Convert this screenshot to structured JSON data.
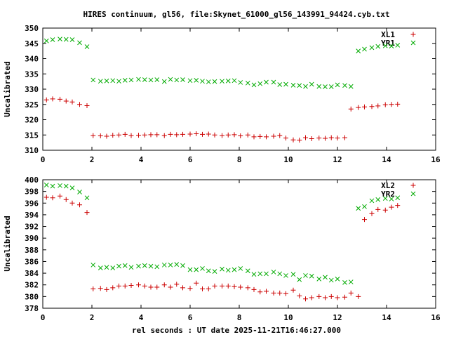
{
  "title": "HIRES continuum, gl56, file:Skynet_61000_gl56_143991_94424.cyb.txt",
  "xlabel": "rel seconds : UT date 2025-11-21T16:46:27.000",
  "colors": {
    "series_a": "#cc0000",
    "series_b": "#00aa00",
    "axis": "#000000"
  },
  "chart_data": [
    {
      "type": "scatter",
      "ylabel": "Uncalibrated",
      "xlim": [
        0,
        16
      ],
      "ylim": [
        310,
        350
      ],
      "xticks": [
        "0",
        "2",
        "4",
        "6",
        "8",
        "10",
        "12",
        "14",
        "16"
      ],
      "yticks": [
        "310",
        "315",
        "320",
        "325",
        "330",
        "335",
        "340",
        "345",
        "350"
      ],
      "legend_position": "top-right",
      "series": [
        {
          "name": "XL1",
          "marker": "plus",
          "x": [
            0.15,
            0.4,
            0.7,
            0.95,
            1.2,
            1.5,
            1.8,
            2.05,
            2.35,
            2.6,
            2.85,
            3.1,
            3.35,
            3.6,
            3.9,
            4.15,
            4.4,
            4.65,
            4.95,
            5.2,
            5.45,
            5.7,
            6.0,
            6.25,
            6.5,
            6.75,
            7.0,
            7.3,
            7.55,
            7.8,
            8.05,
            8.35,
            8.6,
            8.85,
            9.1,
            9.4,
            9.65,
            9.9,
            10.2,
            10.45,
            10.7,
            10.95,
            11.25,
            11.5,
            11.75,
            12.0,
            12.3,
            12.55,
            12.85,
            13.1,
            13.4,
            13.65,
            13.95,
            14.2,
            14.45
          ],
          "y": [
            326.5,
            326.8,
            326.7,
            326.1,
            325.8,
            325.0,
            324.6,
            314.8,
            314.7,
            314.6,
            314.9,
            315.0,
            315.2,
            314.8,
            314.9,
            315.0,
            315.1,
            315.1,
            314.8,
            315.2,
            315.1,
            315.2,
            315.3,
            315.4,
            315.2,
            315.3,
            315.0,
            314.8,
            315.0,
            315.1,
            314.7,
            315.0,
            314.4,
            314.5,
            314.4,
            314.6,
            314.8,
            314.0,
            313.4,
            313.3,
            314.1,
            313.8,
            314.0,
            313.9,
            314.1,
            314.0,
            314.1,
            323.5,
            324.0,
            324.2,
            324.3,
            324.5,
            324.9,
            325.0,
            325.1
          ]
        },
        {
          "name": "YR1",
          "marker": "cross",
          "x": [
            0.15,
            0.4,
            0.7,
            0.95,
            1.2,
            1.5,
            1.8,
            2.05,
            2.35,
            2.6,
            2.85,
            3.1,
            3.35,
            3.6,
            3.9,
            4.15,
            4.4,
            4.65,
            4.95,
            5.2,
            5.45,
            5.7,
            6.0,
            6.25,
            6.5,
            6.75,
            7.0,
            7.3,
            7.55,
            7.8,
            8.05,
            8.35,
            8.6,
            8.85,
            9.1,
            9.4,
            9.65,
            9.9,
            10.2,
            10.45,
            10.7,
            10.95,
            11.25,
            11.5,
            11.75,
            12.0,
            12.3,
            12.55,
            12.85,
            13.1,
            13.4,
            13.65,
            13.95,
            14.2,
            14.45
          ],
          "y": [
            345.8,
            346.2,
            346.4,
            346.3,
            346.2,
            345.2,
            343.9,
            333.0,
            332.6,
            332.7,
            332.8,
            332.6,
            332.9,
            333.0,
            333.2,
            333.1,
            333.0,
            333.1,
            332.5,
            333.2,
            333.0,
            333.1,
            332.8,
            332.9,
            332.6,
            332.4,
            332.5,
            332.6,
            332.7,
            332.8,
            332.2,
            332.0,
            331.4,
            331.8,
            332.3,
            332.3,
            331.5,
            331.6,
            331.3,
            331.2,
            330.9,
            331.6,
            330.9,
            330.8,
            330.8,
            331.4,
            331.2,
            330.9,
            342.5,
            343.1,
            343.6,
            344.0,
            344.2,
            344.1,
            344.4
          ]
        }
      ]
    },
    {
      "type": "scatter",
      "ylabel": "Uncalibrated",
      "xlim": [
        0,
        16
      ],
      "ylim": [
        378,
        400
      ],
      "xticks": [
        "0",
        "2",
        "4",
        "6",
        "8",
        "10",
        "12",
        "14",
        "16"
      ],
      "yticks": [
        "378",
        "380",
        "382",
        "384",
        "386",
        "388",
        "390",
        "392",
        "394",
        "396",
        "398",
        "400"
      ],
      "legend_position": "top-right",
      "series": [
        {
          "name": "XL2",
          "marker": "plus",
          "x": [
            0.15,
            0.4,
            0.7,
            0.95,
            1.2,
            1.5,
            1.8,
            2.05,
            2.35,
            2.6,
            2.85,
            3.1,
            3.35,
            3.6,
            3.9,
            4.15,
            4.4,
            4.65,
            4.95,
            5.2,
            5.45,
            5.7,
            6.0,
            6.25,
            6.5,
            6.75,
            7.0,
            7.3,
            7.55,
            7.8,
            8.05,
            8.35,
            8.6,
            8.85,
            9.1,
            9.4,
            9.65,
            9.9,
            10.2,
            10.45,
            10.7,
            10.95,
            11.25,
            11.5,
            11.75,
            12.0,
            12.3,
            12.55,
            12.85,
            13.1,
            13.4,
            13.65,
            13.95,
            14.2,
            14.45
          ],
          "y": [
            397.0,
            396.9,
            397.2,
            396.6,
            396.0,
            395.7,
            394.4,
            381.3,
            381.4,
            381.2,
            381.5,
            381.8,
            381.8,
            381.9,
            382.0,
            381.8,
            381.6,
            381.6,
            382.0,
            381.6,
            382.1,
            381.5,
            381.4,
            382.3,
            381.3,
            381.3,
            381.8,
            381.8,
            381.8,
            381.7,
            381.6,
            381.5,
            381.2,
            380.8,
            380.9,
            380.6,
            380.6,
            380.5,
            381.1,
            380.1,
            379.6,
            379.8,
            380.0,
            379.8,
            380.0,
            379.8,
            379.9,
            380.6,
            380.0,
            393.2,
            394.2,
            394.9,
            394.8,
            395.3,
            395.6
          ]
        },
        {
          "name": "YR2",
          "marker": "cross",
          "x": [
            0.15,
            0.4,
            0.7,
            0.95,
            1.2,
            1.5,
            1.8,
            2.05,
            2.35,
            2.6,
            2.85,
            3.1,
            3.35,
            3.6,
            3.9,
            4.15,
            4.4,
            4.65,
            4.95,
            5.2,
            5.45,
            5.7,
            6.0,
            6.25,
            6.5,
            6.75,
            7.0,
            7.3,
            7.55,
            7.8,
            8.05,
            8.35,
            8.6,
            8.85,
            9.1,
            9.4,
            9.65,
            9.9,
            10.2,
            10.45,
            10.7,
            10.95,
            11.25,
            11.5,
            11.75,
            12.0,
            12.3,
            12.55,
            12.85,
            13.1,
            13.4,
            13.65,
            13.95,
            14.2,
            14.45
          ],
          "y": [
            399.1,
            398.9,
            399.0,
            398.9,
            398.6,
            397.9,
            396.9,
            385.4,
            384.9,
            385.0,
            384.9,
            385.2,
            385.3,
            385.0,
            385.2,
            385.3,
            385.2,
            385.1,
            385.4,
            385.4,
            385.5,
            385.3,
            384.6,
            384.6,
            384.8,
            384.4,
            384.3,
            384.7,
            384.5,
            384.6,
            384.8,
            384.4,
            383.8,
            383.9,
            383.9,
            384.2,
            383.9,
            383.6,
            383.8,
            382.9,
            383.6,
            383.5,
            383.0,
            383.3,
            382.8,
            383.0,
            382.4,
            382.5,
            395.1,
            395.4,
            396.4,
            396.6,
            396.8,
            396.7,
            396.9
          ]
        }
      ]
    }
  ]
}
